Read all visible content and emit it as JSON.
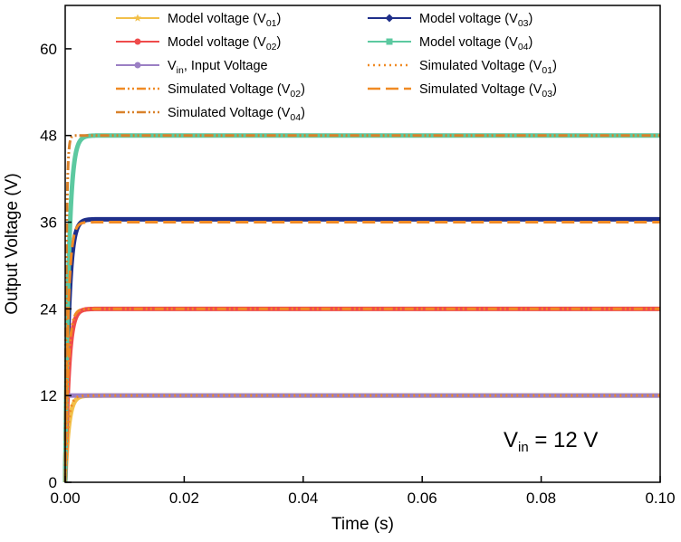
{
  "chart_data": {
    "type": "line",
    "xlabel": "Time (s)",
    "ylabel": "Output Voltage (V)",
    "xlim": [
      0.0,
      0.1
    ],
    "ylim": [
      0,
      66
    ],
    "x_ticks": [
      0.0,
      0.02,
      0.04,
      0.06,
      0.08,
      0.1
    ],
    "x_tick_labels": [
      "0.00",
      "0.02",
      "0.04",
      "0.06",
      "0.08",
      "0.10"
    ],
    "y_ticks": [
      0,
      12,
      24,
      36,
      48,
      60
    ],
    "y_tick_labels": [
      "0",
      "12",
      "24",
      "36",
      "48",
      "60"
    ],
    "grid": false,
    "legend_position": "top",
    "annotation": {
      "main": "V",
      "sub": "in",
      "rest": " = 12 V"
    },
    "series": [
      {
        "name": "Model voltage (V01)",
        "label_main": "Model voltage (V",
        "label_sub": "01",
        "label_end": ")",
        "color": "#F2C04A",
        "style": "solid",
        "marker": "star",
        "steady": 12,
        "tau": 0.0006
      },
      {
        "name": "Model voltage (V03)",
        "label_main": "Model voltage (V",
        "label_sub": "03",
        "label_end": ")",
        "color": "#1F2F8A",
        "style": "solid",
        "marker": "diamond",
        "steady": 36.4,
        "tau": 0.0006
      },
      {
        "name": "Model voltage (V02)",
        "label_main": "Model voltage (V",
        "label_sub": "02",
        "label_end": ")",
        "color": "#EF4B4B",
        "style": "solid",
        "marker": "circle",
        "steady": 24,
        "tau": 0.0006
      },
      {
        "name": "Model voltage (V04)",
        "label_main": "Model voltage (V",
        "label_sub": "04",
        "label_end": ")",
        "color": "#5CC9A0",
        "style": "solid",
        "marker": "square",
        "steady": 48,
        "tau": 0.0006
      },
      {
        "name": "Vin, Input Voltage",
        "label_main": "V",
        "label_sub": "in",
        "label_end": ", Input Voltage",
        "color": "#9B7FC4",
        "style": "solid",
        "marker": "circle",
        "steady": 12,
        "tau": 0
      },
      {
        "name": "Simulated Voltage (V01)",
        "label_main": "Simulated Voltage (V",
        "label_sub": "01",
        "label_end": ")",
        "color": "#F08A24",
        "style": "dot",
        "marker": "none",
        "steady": 12,
        "tau": 0.0005
      },
      {
        "name": "Simulated Voltage (V02)",
        "label_main": "Simulated Voltage (V",
        "label_sub": "02",
        "label_end": ")",
        "color": "#F08A24",
        "style": "dashdotdot",
        "marker": "none",
        "steady": 24,
        "tau": 0.0005
      },
      {
        "name": "Simulated Voltage (V03)",
        "label_main": "Simulated Voltage (V",
        "label_sub": "03",
        "label_end": ")",
        "color": "#F08A24",
        "style": "longdash",
        "marker": "none",
        "steady": 36,
        "tau": 0.0005
      },
      {
        "name": "Simulated Voltage (V04)",
        "label_main": "Simulated Voltage (V",
        "label_sub": "04",
        "label_end": ")",
        "color": "#D9822B",
        "style": "dashdotdot",
        "marker": "none",
        "steady": 48,
        "tau": 0.0002
      }
    ]
  }
}
